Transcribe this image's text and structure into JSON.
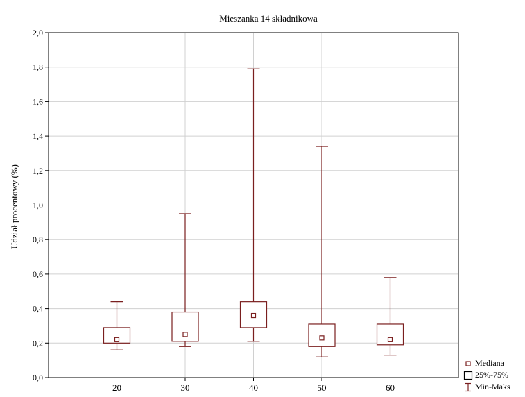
{
  "chart_data": {
    "type": "boxplot",
    "title": "Mieszanka 14 składnikowa",
    "xlabel": "",
    "ylabel": "Udział procentowy (%)",
    "categories": [
      "20",
      "30",
      "40",
      "50",
      "60"
    ],
    "ylim": [
      0.0,
      2.0
    ],
    "yticks": [
      "0,0",
      "0,2",
      "0,4",
      "0,6",
      "0,8",
      "1,0",
      "1,2",
      "1,4",
      "1,6",
      "1,8",
      "2,0"
    ],
    "grid": true,
    "legend_position": "bottom-right",
    "boxes": [
      {
        "category": "20",
        "min": 0.16,
        "q1": 0.2,
        "median": 0.22,
        "q3": 0.29,
        "max": 0.44
      },
      {
        "category": "30",
        "min": 0.18,
        "q1": 0.21,
        "median": 0.25,
        "q3": 0.38,
        "max": 0.95
      },
      {
        "category": "40",
        "min": 0.21,
        "q1": 0.29,
        "median": 0.36,
        "q3": 0.44,
        "max": 1.79
      },
      {
        "category": "50",
        "min": 0.12,
        "q1": 0.18,
        "median": 0.23,
        "q3": 0.31,
        "max": 1.34
      },
      {
        "category": "60",
        "min": 0.13,
        "q1": 0.19,
        "median": 0.22,
        "q3": 0.31,
        "max": 0.58
      }
    ],
    "legend": [
      {
        "key": "median",
        "label": "Mediana"
      },
      {
        "key": "box",
        "label": "25%-75%"
      },
      {
        "key": "whisker",
        "label": "Min-Maks"
      }
    ],
    "colors": {
      "series": "#7a1f1f",
      "grid": "#d0d0d0",
      "axis": "#000000"
    }
  }
}
